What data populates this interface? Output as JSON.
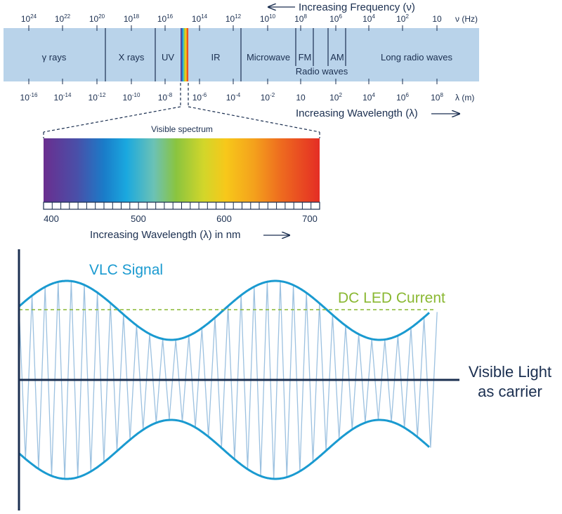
{
  "spectrum": {
    "frequency_title": "Increasing Frequency (ν)",
    "frequency_unit": "ν (Hz)",
    "frequency_ticks": [
      {
        "base": "10",
        "exp": "24"
      },
      {
        "base": "10",
        "exp": "22"
      },
      {
        "base": "10",
        "exp": "20"
      },
      {
        "base": "10",
        "exp": "18"
      },
      {
        "base": "10",
        "exp": "16"
      },
      {
        "base": "10",
        "exp": "14"
      },
      {
        "base": "10",
        "exp": "12"
      },
      {
        "base": "10",
        "exp": "10"
      },
      {
        "base": "10",
        "exp": "8"
      },
      {
        "base": "10",
        "exp": "6"
      },
      {
        "base": "10",
        "exp": "4"
      },
      {
        "base": "10",
        "exp": "2"
      },
      {
        "base": "10",
        "exp": ""
      }
    ],
    "wavelength_unit": "λ (m)",
    "wavelength_ticks": [
      {
        "base": "10",
        "exp": "-16"
      },
      {
        "base": "10",
        "exp": "-14"
      },
      {
        "base": "10",
        "exp": "-12"
      },
      {
        "base": "10",
        "exp": "-10"
      },
      {
        "base": "10",
        "exp": "-8"
      },
      {
        "base": "10",
        "exp": "-6"
      },
      {
        "base": "10",
        "exp": "-4"
      },
      {
        "base": "10",
        "exp": "-2"
      },
      {
        "base": "10",
        "exp": ""
      },
      {
        "base": "10",
        "exp": "2"
      },
      {
        "base": "10",
        "exp": "4"
      },
      {
        "base": "10",
        "exp": "6"
      },
      {
        "base": "10",
        "exp": "8"
      }
    ],
    "wavelength_title": "Increasing Wavelength (λ)",
    "bands": {
      "gamma": "γ rays",
      "xray": "X rays",
      "uv": "UV",
      "ir": "IR",
      "microwave": "Microwave",
      "fm": "FM",
      "am": "AM",
      "long_radio": "Long radio waves",
      "radio": "Radio waves"
    },
    "band_color": "#b9d3ea",
    "line_color": "#1b2f50"
  },
  "visible": {
    "title": "Visible spectrum",
    "ticks": [
      "400",
      "500",
      "600",
      "700"
    ],
    "axis_title": "Increasing Wavelength (λ) in nm"
  },
  "vlc": {
    "signal_label": "VLC Signal",
    "dc_label": "DC LED Current",
    "carrier_label_line1": "Visible Light",
    "carrier_label_line2": "as carrier",
    "signal_color": "#1a9ad0",
    "dc_color": "#8ab832",
    "carrier_color": "#9cc1e0",
    "axis_color": "#1b2f50"
  }
}
